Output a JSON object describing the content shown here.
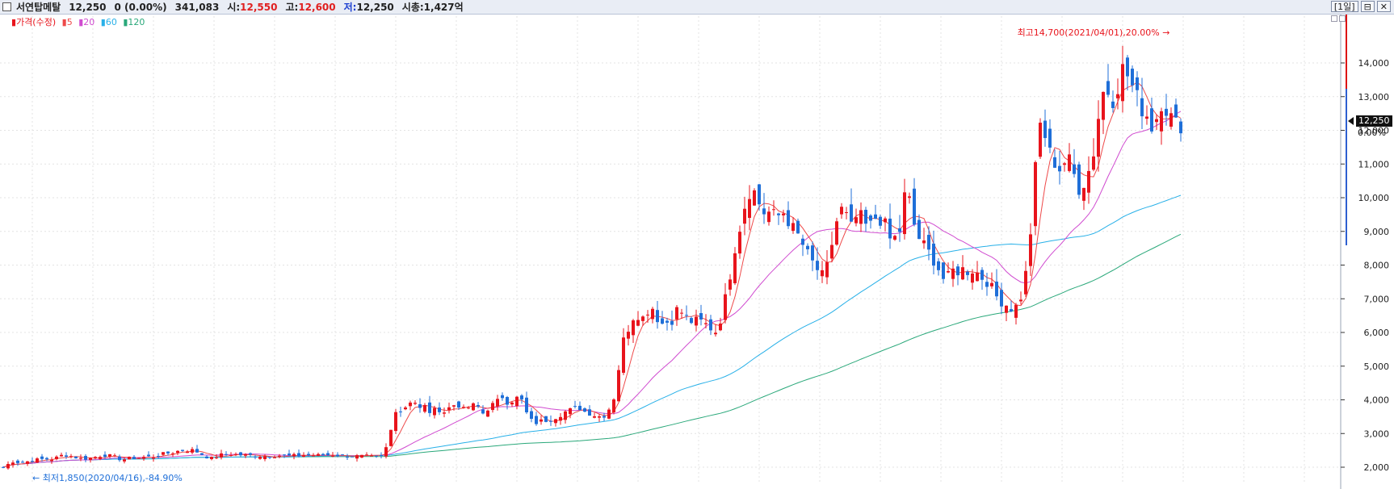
{
  "header": {
    "stock_name": "서연탑메탈",
    "price": "12,250",
    "change": "0 (0.00%)",
    "volume": "341,083",
    "open_label": "시:",
    "open": "12,550",
    "high_label": "고:",
    "high": "12,600",
    "low_label": "저:",
    "low": "12,250",
    "marketcap": "시총:1,427억",
    "period_button": "[1일]",
    "restore_label": "⊟",
    "close_label": "✕"
  },
  "legend": {
    "price_label": "가격(수정)",
    "ma5": "5",
    "ma20": "20",
    "ma60": "60",
    "ma120": "120"
  },
  "colors": {
    "up": "#e8141c",
    "down": "#1f6fd8",
    "ma5": "#ee4a4a",
    "ma20": "#d04bd0",
    "ma60": "#28b0e8",
    "ma120": "#2aa87a",
    "grid": "#e3e3e3"
  },
  "annotations": {
    "max": "최고14,700(2021/04/01),20.00%",
    "min": "최저1,850(2020/04/16),-84.90%"
  },
  "current": {
    "price": "12,250",
    "pct": "0.00%"
  },
  "chart_data": {
    "type": "candlestick",
    "y_ticks": [
      2000,
      3000,
      4000,
      5000,
      6000,
      7000,
      8000,
      9000,
      10000,
      11000,
      12000,
      13000,
      14000
    ],
    "y_tick_labels": [
      "2,000",
      "3,000",
      "4,000",
      "5,000",
      "6,000",
      "7,000",
      "8,000",
      "9,000",
      "10,000",
      "11,000",
      "12,000",
      "13,000",
      "14,000"
    ],
    "ylim": [
      1500,
      15200
    ],
    "close_keys": [
      [
        0,
        2000
      ],
      [
        12,
        2180
      ],
      [
        22,
        2130
      ],
      [
        35,
        2200
      ],
      [
        50,
        2240
      ],
      [
        63,
        2250
      ],
      [
        75,
        2380
      ],
      [
        86,
        2320
      ],
      [
        97,
        2250
      ],
      [
        110,
        2280
      ],
      [
        124,
        2370
      ],
      [
        135,
        2320
      ],
      [
        147,
        2230
      ],
      [
        160,
        2270
      ],
      [
        173,
        2300
      ],
      [
        186,
        2310
      ],
      [
        198,
        2390
      ],
      [
        209,
        2440
      ],
      [
        220,
        2500
      ],
      [
        232,
        2520
      ],
      [
        242,
        2440
      ],
      [
        250,
        2330
      ],
      [
        258,
        2260
      ],
      [
        268,
        2360
      ],
      [
        282,
        2390
      ],
      [
        296,
        2360
      ],
      [
        312,
        2350
      ],
      [
        328,
        2330
      ],
      [
        342,
        2350
      ],
      [
        356,
        2330
      ],
      [
        372,
        2360
      ],
      [
        390,
        2350
      ],
      [
        410,
        2370
      ],
      [
        430,
        2330
      ],
      [
        450,
        2320
      ],
      [
        460,
        2280
      ],
      [
        470,
        2330
      ],
      [
        476,
        2700
      ],
      [
        480,
        3100
      ],
      [
        484,
        3650
      ],
      [
        488,
        3800
      ],
      [
        494,
        3600
      ],
      [
        500,
        3900
      ],
      [
        508,
        4050
      ],
      [
        514,
        3700
      ],
      [
        522,
        3800
      ],
      [
        530,
        3600
      ],
      [
        538,
        3750
      ],
      [
        546,
        3650
      ],
      [
        554,
        3800
      ],
      [
        562,
        3900
      ],
      [
        570,
        3700
      ],
      [
        578,
        3800
      ],
      [
        586,
        3850
      ],
      [
        594,
        3600
      ],
      [
        602,
        3800
      ],
      [
        610,
        3900
      ],
      [
        618,
        4100
      ],
      [
        624,
        3950
      ],
      [
        632,
        4000
      ],
      [
        640,
        4100
      ],
      [
        648,
        3600
      ],
      [
        656,
        3300
      ],
      [
        664,
        3350
      ],
      [
        672,
        3400
      ],
      [
        680,
        3450
      ],
      [
        688,
        3550
      ],
      [
        696,
        3650
      ],
      [
        704,
        3700
      ],
      [
        712,
        3800
      ],
      [
        720,
        3650
      ],
      [
        728,
        3600
      ],
      [
        736,
        3500
      ],
      [
        744,
        3550
      ],
      [
        752,
        3800
      ],
      [
        758,
        4200
      ],
      [
        764,
        5300
      ],
      [
        770,
        6000
      ],
      [
        776,
        6200
      ],
      [
        782,
        6600
      ],
      [
        788,
        6500
      ],
      [
        794,
        6400
      ],
      [
        800,
        6800
      ],
      [
        806,
        6700
      ],
      [
        812,
        6300
      ],
      [
        818,
        6250
      ],
      [
        824,
        6350
      ],
      [
        830,
        6400
      ],
      [
        836,
        6800
      ],
      [
        842,
        6500
      ],
      [
        848,
        6400
      ],
      [
        854,
        6300
      ],
      [
        860,
        6350
      ],
      [
        866,
        6300
      ],
      [
        872,
        6200
      ],
      [
        878,
        6100
      ],
      [
        884,
        6000
      ],
      [
        890,
        6600
      ],
      [
        896,
        7200
      ],
      [
        902,
        8000
      ],
      [
        908,
        8800
      ],
      [
        914,
        9300
      ],
      [
        920,
        10000
      ],
      [
        926,
        10300
      ],
      [
        932,
        10100
      ],
      [
        938,
        9700
      ],
      [
        944,
        9500
      ],
      [
        950,
        9600
      ],
      [
        956,
        9400
      ],
      [
        962,
        9500
      ],
      [
        968,
        9600
      ],
      [
        974,
        9200
      ],
      [
        980,
        9000
      ],
      [
        986,
        8800
      ],
      [
        992,
        8500
      ],
      [
        998,
        8200
      ],
      [
        1004,
        8000
      ],
      [
        1010,
        7800
      ],
      [
        1016,
        7600
      ],
      [
        1022,
        8100
      ],
      [
        1028,
        8900
      ],
      [
        1034,
        9500
      ],
      [
        1040,
        9700
      ],
      [
        1046,
        9300
      ],
      [
        1052,
        9000
      ],
      [
        1058,
        9600
      ],
      [
        1064,
        9300
      ],
      [
        1070,
        9100
      ],
      [
        1076,
        9200
      ],
      [
        1082,
        9500
      ],
      [
        1088,
        9300
      ],
      [
        1094,
        9100
      ],
      [
        1100,
        8600
      ],
      [
        1106,
        8900
      ],
      [
        1112,
        9100
      ],
      [
        1118,
        10500
      ],
      [
        1124,
        9600
      ],
      [
        1130,
        9000
      ],
      [
        1136,
        8700
      ],
      [
        1142,
        8500
      ],
      [
        1148,
        8300
      ],
      [
        1154,
        8100
      ],
      [
        1160,
        7800
      ],
      [
        1166,
        7500
      ],
      [
        1172,
        7700
      ],
      [
        1178,
        7900
      ],
      [
        1184,
        7800
      ],
      [
        1190,
        7900
      ],
      [
        1196,
        7800
      ],
      [
        1202,
        7900
      ],
      [
        1208,
        7700
      ],
      [
        1214,
        7600
      ],
      [
        1220,
        7500
      ],
      [
        1226,
        7200
      ],
      [
        1232,
        7000
      ],
      [
        1238,
        6900
      ],
      [
        1244,
        6800
      ],
      [
        1250,
        6700
      ],
      [
        1256,
        6800
      ],
      [
        1262,
        7200
      ],
      [
        1268,
        8000
      ],
      [
        1274,
        9500
      ],
      [
        1280,
        11500
      ],
      [
        1286,
        12500
      ],
      [
        1292,
        11500
      ],
      [
        1298,
        11200
      ],
      [
        1304,
        11000
      ],
      [
        1310,
        10800
      ],
      [
        1316,
        11200
      ],
      [
        1322,
        11000
      ],
      [
        1328,
        10500
      ],
      [
        1334,
        10200
      ],
      [
        1340,
        10600
      ],
      [
        1346,
        10900
      ],
      [
        1352,
        11600
      ],
      [
        1358,
        12800
      ],
      [
        1364,
        13300
      ],
      [
        1370,
        13100
      ],
      [
        1376,
        12900
      ],
      [
        1382,
        13600
      ],
      [
        1388,
        13900
      ],
      [
        1394,
        13500
      ],
      [
        1400,
        13200
      ],
      [
        1406,
        12800
      ],
      [
        1412,
        12600
      ],
      [
        1418,
        12400
      ],
      [
        1424,
        12000
      ],
      [
        1430,
        12600
      ],
      [
        1436,
        13000
      ],
      [
        1442,
        12500
      ],
      [
        1448,
        12300
      ],
      [
        1454,
        12100
      ],
      [
        1460,
        12250
      ]
    ]
  }
}
